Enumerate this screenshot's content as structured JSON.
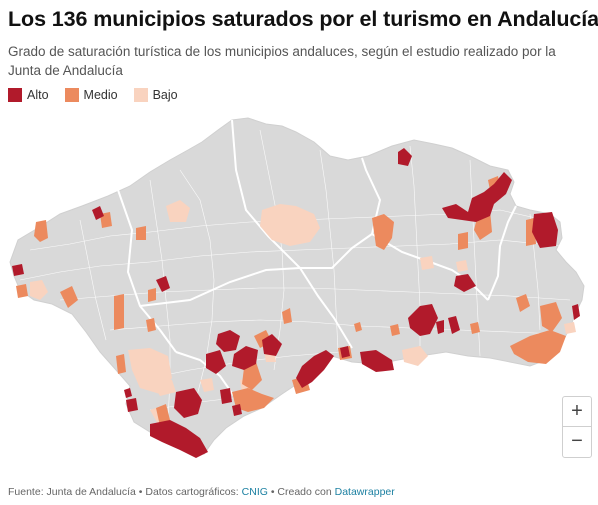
{
  "header": {
    "title": "Los 136 municipios saturados por el turismo en Andalucía",
    "subtitle": "Grado de saturación turística de los municipios andaluces, según el estudio realizado por la Junta de Andalucía"
  },
  "legend": [
    {
      "label": "Alto",
      "color": "#b11a2b"
    },
    {
      "label": "Medio",
      "color": "#ec8a5e"
    },
    {
      "label": "Bajo",
      "color": "#f9d3bf"
    }
  ],
  "map": {
    "region": "Andalucía",
    "base_color": "#d9d9d9",
    "border_color": "#ffffff"
  },
  "zoom": {
    "in_label": "+",
    "out_label": "−"
  },
  "footer": {
    "source_prefix": "Fuente: Junta de Andalucía • Datos cartográficos: ",
    "cnig": "CNIG",
    "created_prefix": " • Creado con ",
    "datawrapper": "Datawrapper"
  }
}
